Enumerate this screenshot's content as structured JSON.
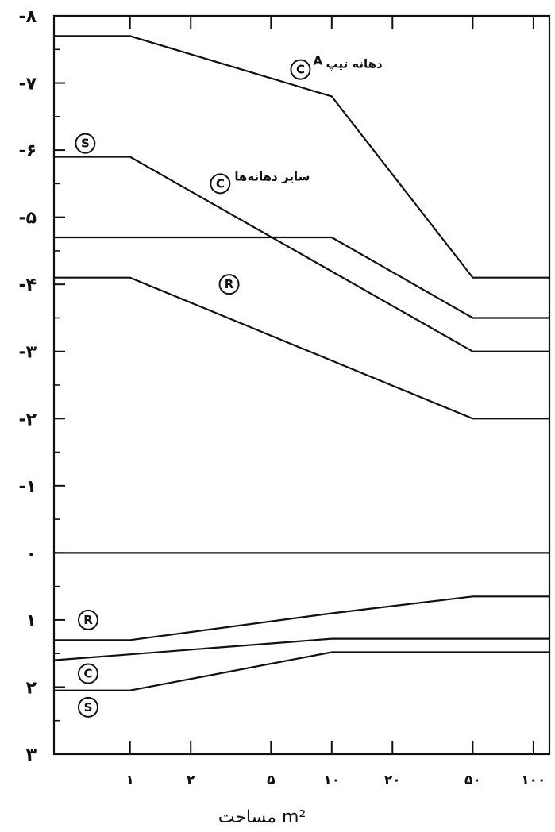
{
  "chart_data": {
    "type": "line",
    "x_scale": "log",
    "x_ticks": [
      {
        "value": 1,
        "label": "۱"
      },
      {
        "value": 2,
        "label": "۲"
      },
      {
        "value": 5,
        "label": "۵"
      },
      {
        "value": 10,
        "label": "۱۰"
      },
      {
        "value": 20,
        "label": "۲۰"
      },
      {
        "value": 50,
        "label": "۵۰"
      },
      {
        "value": 100,
        "label": "۱۰۰"
      }
    ],
    "xlim": [
      0.42,
      120
    ],
    "ylim": [
      3,
      -8
    ],
    "y_ticks": [
      {
        "value": -8,
        "label": "-۸"
      },
      {
        "value": -7,
        "label": "-۷"
      },
      {
        "value": -6,
        "label": "-۶"
      },
      {
        "value": -5,
        "label": "-۵"
      },
      {
        "value": -4,
        "label": "-۴"
      },
      {
        "value": -3,
        "label": "-۳"
      },
      {
        "value": -2,
        "label": "-۲"
      },
      {
        "value": -1,
        "label": "-۱"
      },
      {
        "value": 0,
        "label": "۰"
      },
      {
        "value": 1,
        "label": "۱"
      },
      {
        "value": 2,
        "label": "۲"
      },
      {
        "value": 3,
        "label": "۳"
      }
    ],
    "xlabel": "مساحت m²",
    "series": [
      {
        "points": [
          [
            0.42,
            -7.7
          ],
          [
            1,
            -7.7
          ],
          [
            10,
            -6.8
          ],
          [
            50,
            -4.1
          ],
          [
            120,
            -4.1
          ]
        ]
      },
      {
        "points": [
          [
            0.42,
            -5.9
          ],
          [
            1,
            -5.9
          ],
          [
            50,
            -3.0
          ],
          [
            120,
            -3.0
          ]
        ]
      },
      {
        "points": [
          [
            0.42,
            -4.7
          ],
          [
            10,
            -4.7
          ],
          [
            50,
            -3.5
          ],
          [
            120,
            -3.5
          ]
        ]
      },
      {
        "points": [
          [
            0.42,
            -4.1
          ],
          [
            1,
            -4.1
          ],
          [
            50,
            -2.0
          ],
          [
            120,
            -2.0
          ]
        ]
      },
      {
        "points": [
          [
            0.42,
            0
          ],
          [
            120,
            0
          ]
        ]
      },
      {
        "points": [
          [
            0.42,
            1.3
          ],
          [
            1,
            1.3
          ],
          [
            10,
            0.9
          ],
          [
            50,
            0.65
          ],
          [
            120,
            0.65
          ]
        ]
      },
      {
        "points": [
          [
            0.42,
            1.6
          ],
          [
            10,
            1.28
          ],
          [
            120,
            1.28
          ]
        ]
      },
      {
        "points": [
          [
            0.42,
            2.05
          ],
          [
            1,
            2.05
          ],
          [
            10,
            1.48
          ],
          [
            120,
            1.48
          ]
        ]
      }
    ],
    "annotations": [
      {
        "circle": "C",
        "text": "دهانه تیپ",
        "suffix": "A",
        "x": 7,
        "y": -7.2
      },
      {
        "circle": "S",
        "text": "",
        "x": 0.6,
        "y": -6.1
      },
      {
        "circle": "C",
        "text": "سایر دهانه‌ها",
        "x": 2.8,
        "y": -5.5
      },
      {
        "circle": "R",
        "text": "",
        "x": 3.1,
        "y": -4.0
      },
      {
        "circle": "R",
        "text": "",
        "x": 0.62,
        "y": 1.0
      },
      {
        "circle": "C",
        "text": "",
        "x": 0.62,
        "y": 1.8
      },
      {
        "circle": "S",
        "text": "",
        "x": 0.62,
        "y": 2.3
      }
    ]
  }
}
